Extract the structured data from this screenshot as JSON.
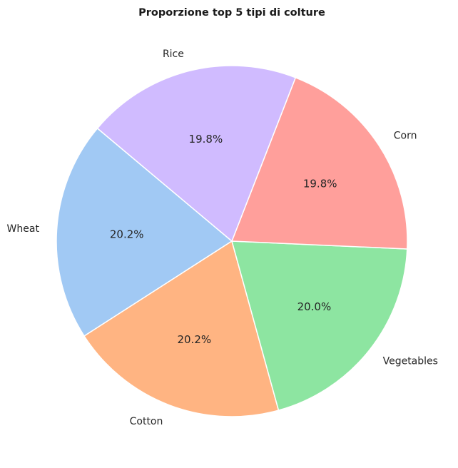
{
  "chart_data": {
    "type": "pie",
    "title": "Proporzione top 5 tipi di colture",
    "start_angle_deg": 140,
    "direction": "counterclockwise",
    "slices": [
      {
        "label": "Wheat",
        "value": 20.2,
        "pct_label": "20.2%",
        "color": "#a1c9f4"
      },
      {
        "label": "Cotton",
        "value": 20.2,
        "pct_label": "20.2%",
        "color": "#ffb482"
      },
      {
        "label": "Vegetables",
        "value": 20.0,
        "pct_label": "20.0%",
        "color": "#8de5a1"
      },
      {
        "label": "Corn",
        "value": 19.8,
        "pct_label": "19.8%",
        "color": "#ff9f9b"
      },
      {
        "label": "Rice",
        "value": 19.8,
        "pct_label": "19.8%",
        "color": "#d0bbff"
      }
    ]
  }
}
